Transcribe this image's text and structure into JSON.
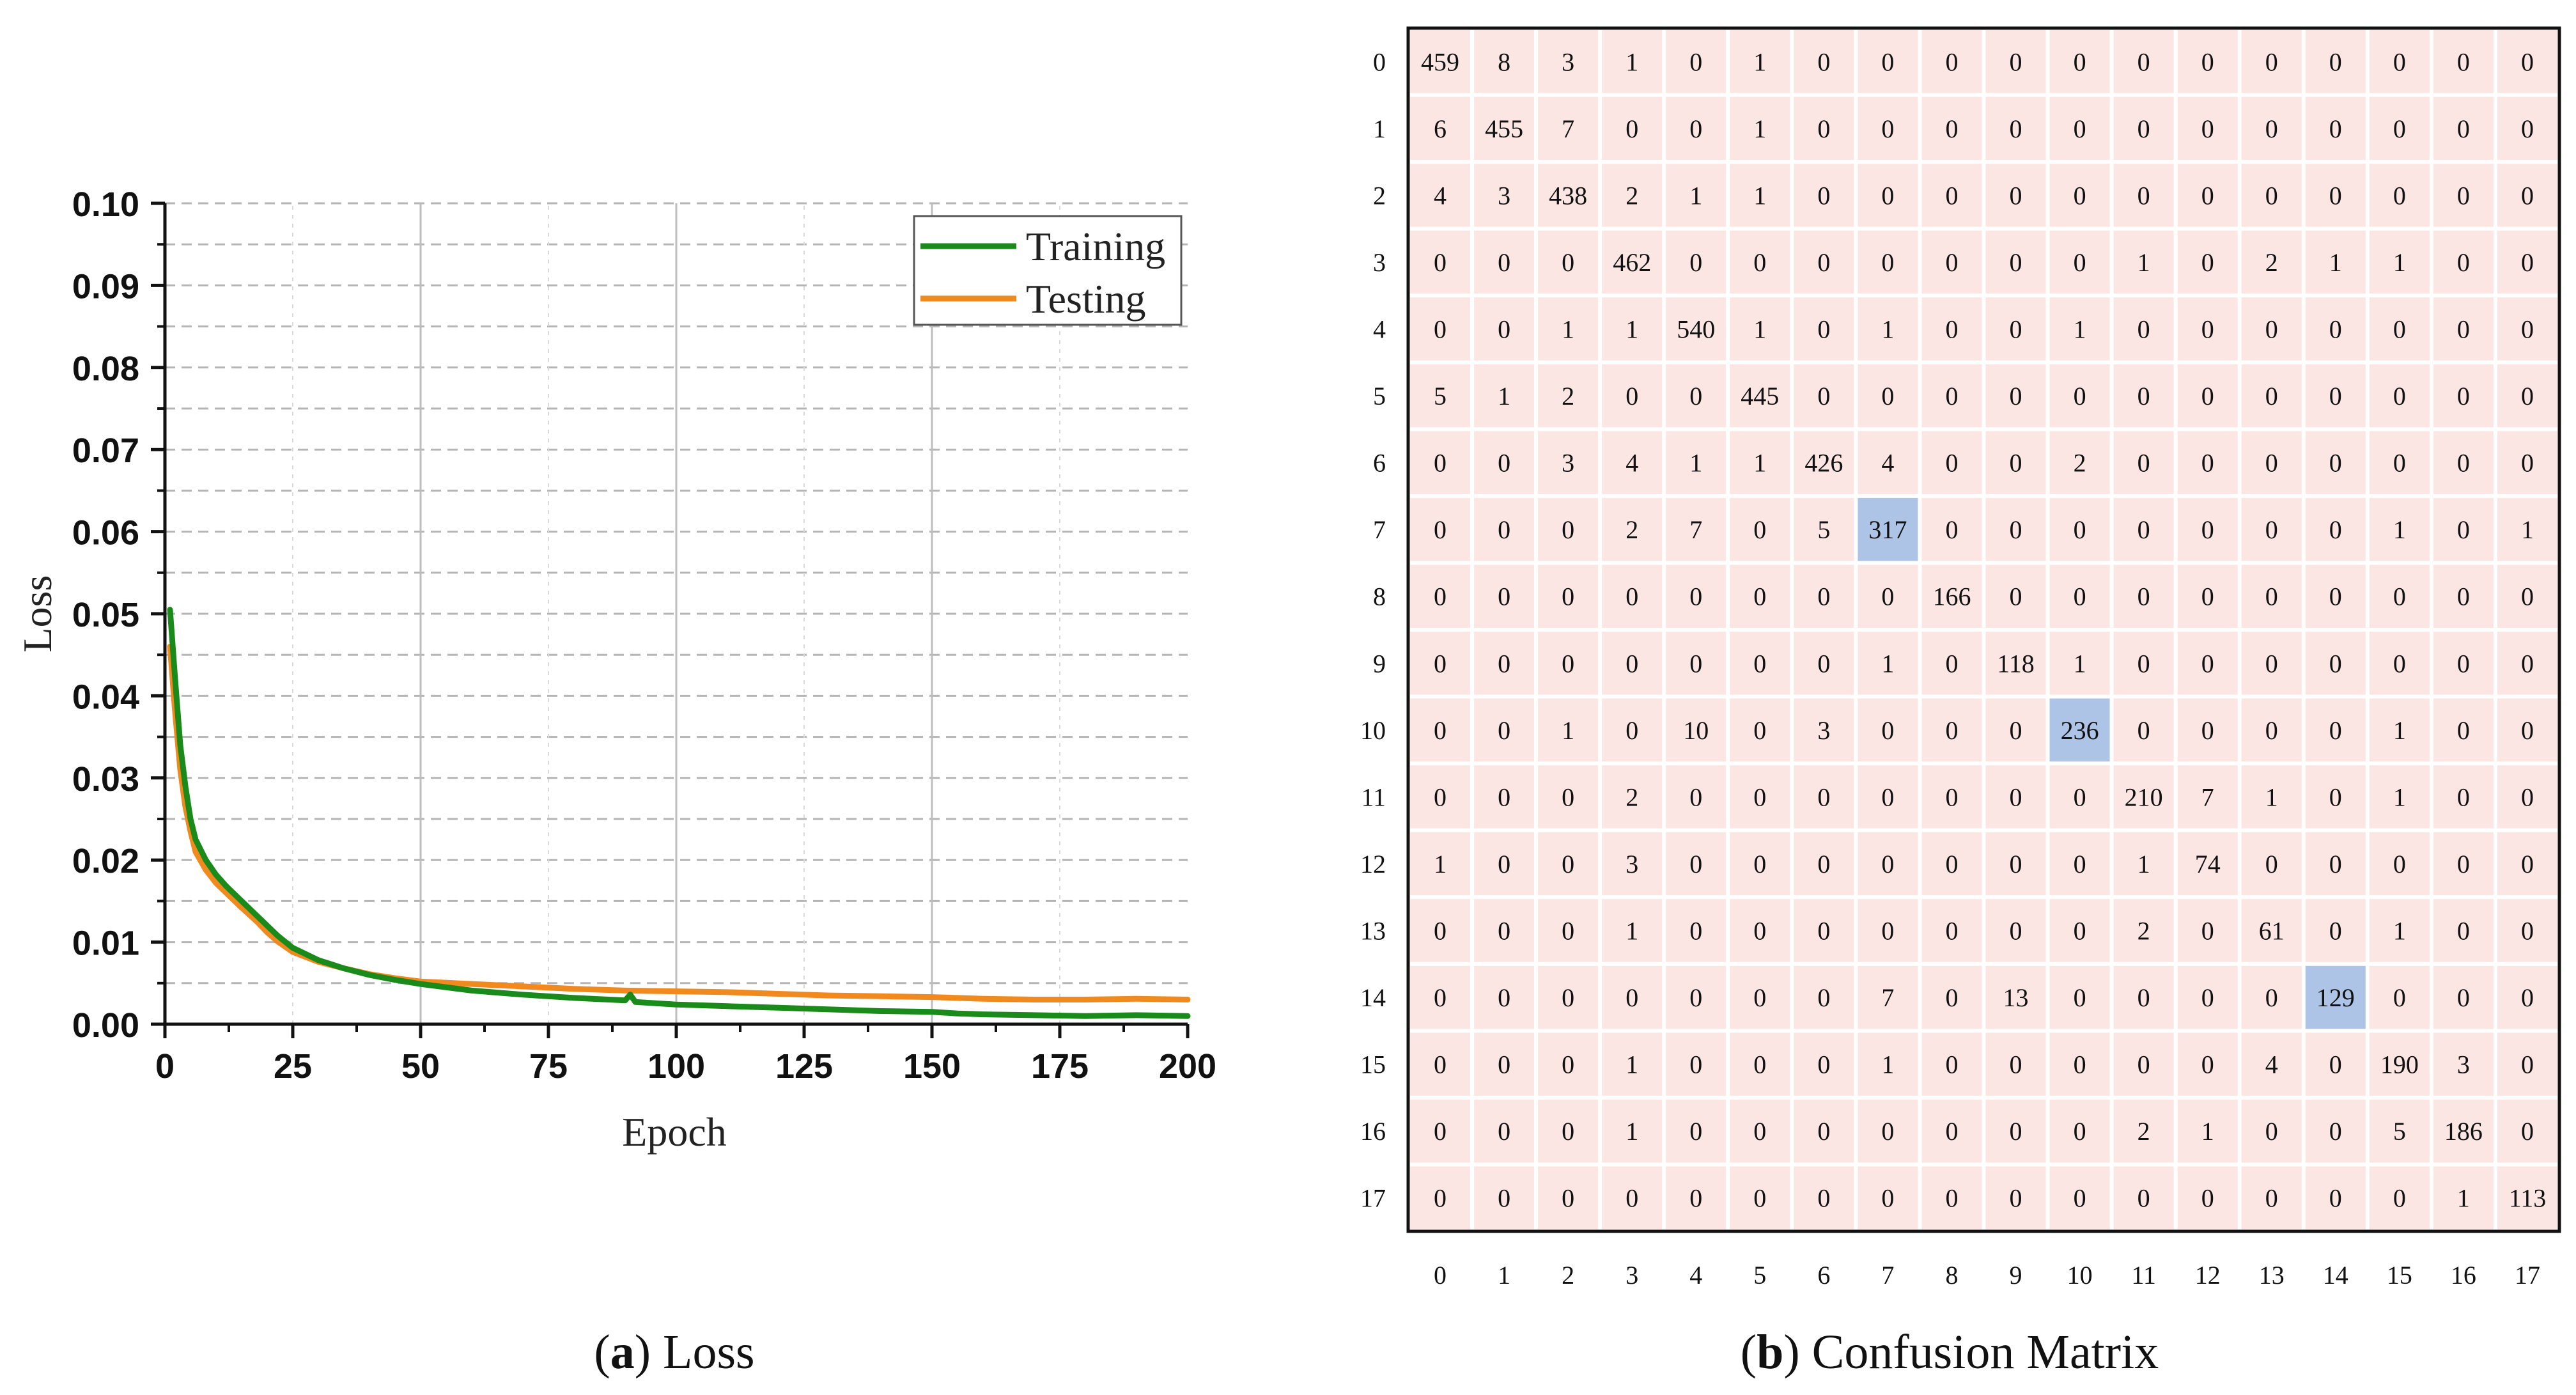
{
  "chart_data": [
    {
      "type": "line",
      "panel_label": "a",
      "caption": "Loss",
      "xlabel": "Epoch",
      "ylabel": "Loss",
      "xlim": [
        0,
        200
      ],
      "ylim": [
        0,
        0.1
      ],
      "xticks": [
        0,
        25,
        50,
        75,
        100,
        125,
        150,
        175,
        200
      ],
      "xtick_labels": [
        "0",
        "25",
        "50",
        "75",
        "100",
        "125",
        "150",
        "175",
        "200"
      ],
      "yticks": [
        0,
        0.01,
        0.02,
        0.03,
        0.04,
        0.05,
        0.06,
        0.07,
        0.08,
        0.09,
        0.1
      ],
      "ytick_labels": [
        "0.00",
        "0.01",
        "0.02",
        "0.03",
        "0.04",
        "0.05",
        "0.06",
        "0.07",
        "0.08",
        "0.09",
        "0.10"
      ],
      "legend_position": "top-right",
      "series": [
        {
          "name": "Training",
          "color": "#1a8a1a",
          "x": [
            1,
            2,
            3,
            4,
            5,
            6,
            8,
            10,
            12,
            15,
            18,
            20,
            22,
            25,
            30,
            35,
            40,
            45,
            50,
            60,
            70,
            80,
            90,
            91,
            92,
            100,
            110,
            120,
            130,
            140,
            150,
            155,
            160,
            170,
            180,
            190,
            200
          ],
          "y": [
            0.0505,
            0.042,
            0.034,
            0.029,
            0.025,
            0.0225,
            0.02,
            0.0182,
            0.0168,
            0.015,
            0.0132,
            0.012,
            0.0108,
            0.0093,
            0.0078,
            0.0068,
            0.006,
            0.0054,
            0.0049,
            0.0041,
            0.0036,
            0.0032,
            0.0029,
            0.0036,
            0.0027,
            0.0024,
            0.0022,
            0.002,
            0.0018,
            0.0016,
            0.0015,
            0.0013,
            0.0012,
            0.0011,
            0.001,
            0.0011,
            0.001
          ]
        },
        {
          "name": "Testing",
          "color": "#f08a1e",
          "x": [
            1,
            2,
            3,
            4,
            5,
            6,
            8,
            10,
            12,
            15,
            18,
            20,
            22,
            25,
            30,
            35,
            40,
            45,
            50,
            60,
            70,
            80,
            90,
            100,
            110,
            120,
            130,
            140,
            150,
            160,
            170,
            180,
            190,
            200
          ],
          "y": [
            0.046,
            0.038,
            0.031,
            0.0265,
            0.0235,
            0.021,
            0.0188,
            0.0172,
            0.016,
            0.0142,
            0.0125,
            0.0112,
            0.0101,
            0.0088,
            0.0076,
            0.0068,
            0.0061,
            0.0056,
            0.0052,
            0.0049,
            0.0046,
            0.0043,
            0.0041,
            0.004,
            0.0039,
            0.0037,
            0.0035,
            0.0034,
            0.0033,
            0.0031,
            0.003,
            0.003,
            0.0031,
            0.003
          ]
        }
      ]
    },
    {
      "type": "heatmap",
      "panel_label": "b",
      "caption": "Confusion Matrix",
      "row_labels": [
        "0",
        "1",
        "2",
        "3",
        "4",
        "5",
        "6",
        "7",
        "8",
        "9",
        "10",
        "11",
        "12",
        "13",
        "14",
        "15",
        "16",
        "17"
      ],
      "col_labels": [
        "0",
        "1",
        "2",
        "3",
        "4",
        "5",
        "6",
        "7",
        "8",
        "9",
        "10",
        "11",
        "12",
        "13",
        "14",
        "15",
        "16",
        "17"
      ],
      "cell_color": "#fbe6e3",
      "highlight_color": "#aec4e6",
      "highlighted_cells": [
        [
          7,
          7
        ],
        [
          10,
          10
        ],
        [
          14,
          14
        ]
      ],
      "matrix": [
        [
          459,
          8,
          3,
          1,
          0,
          1,
          0,
          0,
          0,
          0,
          0,
          0,
          0,
          0,
          0,
          0,
          0,
          0
        ],
        [
          6,
          455,
          7,
          0,
          0,
          1,
          0,
          0,
          0,
          0,
          0,
          0,
          0,
          0,
          0,
          0,
          0,
          0
        ],
        [
          4,
          3,
          438,
          2,
          1,
          1,
          0,
          0,
          0,
          0,
          0,
          0,
          0,
          0,
          0,
          0,
          0,
          0
        ],
        [
          0,
          0,
          0,
          462,
          0,
          0,
          0,
          0,
          0,
          0,
          0,
          1,
          0,
          2,
          1,
          1,
          0,
          0
        ],
        [
          0,
          0,
          1,
          1,
          540,
          1,
          0,
          1,
          0,
          0,
          1,
          0,
          0,
          0,
          0,
          0,
          0,
          0
        ],
        [
          5,
          1,
          2,
          0,
          0,
          445,
          0,
          0,
          0,
          0,
          0,
          0,
          0,
          0,
          0,
          0,
          0,
          0
        ],
        [
          0,
          0,
          3,
          4,
          1,
          1,
          426,
          4,
          0,
          0,
          2,
          0,
          0,
          0,
          0,
          0,
          0,
          0
        ],
        [
          0,
          0,
          0,
          2,
          7,
          0,
          5,
          317,
          0,
          0,
          0,
          0,
          0,
          0,
          0,
          1,
          0,
          1
        ],
        [
          0,
          0,
          0,
          0,
          0,
          0,
          0,
          0,
          166,
          0,
          0,
          0,
          0,
          0,
          0,
          0,
          0,
          0
        ],
        [
          0,
          0,
          0,
          0,
          0,
          0,
          0,
          1,
          0,
          118,
          1,
          0,
          0,
          0,
          0,
          0,
          0,
          0
        ],
        [
          0,
          0,
          1,
          0,
          10,
          0,
          3,
          0,
          0,
          0,
          236,
          0,
          0,
          0,
          0,
          1,
          0,
          0
        ],
        [
          0,
          0,
          0,
          2,
          0,
          0,
          0,
          0,
          0,
          0,
          0,
          210,
          7,
          1,
          0,
          1,
          0,
          0
        ],
        [
          1,
          0,
          0,
          3,
          0,
          0,
          0,
          0,
          0,
          0,
          0,
          1,
          74,
          0,
          0,
          0,
          0,
          0
        ],
        [
          0,
          0,
          0,
          1,
          0,
          0,
          0,
          0,
          0,
          0,
          0,
          2,
          0,
          61,
          0,
          1,
          0,
          0
        ],
        [
          0,
          0,
          0,
          0,
          0,
          0,
          0,
          7,
          0,
          13,
          0,
          0,
          0,
          0,
          129,
          0,
          0,
          0
        ],
        [
          0,
          0,
          0,
          1,
          0,
          0,
          0,
          1,
          0,
          0,
          0,
          0,
          0,
          4,
          0,
          190,
          3,
          0
        ],
        [
          0,
          0,
          0,
          1,
          0,
          0,
          0,
          0,
          0,
          0,
          0,
          2,
          1,
          0,
          0,
          5,
          186,
          0
        ],
        [
          0,
          0,
          0,
          0,
          0,
          0,
          0,
          0,
          0,
          0,
          0,
          0,
          0,
          0,
          0,
          0,
          1,
          113
        ]
      ]
    }
  ]
}
